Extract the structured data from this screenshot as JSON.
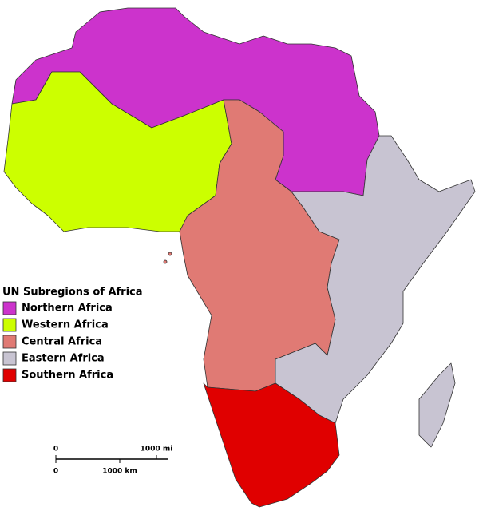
{
  "legend": {
    "title": "UN Subregions of Africa",
    "items": [
      {
        "label": "Northern Africa",
        "color": "#cc33cc"
      },
      {
        "label": "Western Africa",
        "color": "#ccff00"
      },
      {
        "label": "Central Africa",
        "color": "#e07a74"
      },
      {
        "label": "Eastern Africa",
        "color": "#c8c4d2"
      },
      {
        "label": "Southern Africa",
        "color": "#e00000"
      }
    ]
  },
  "scale_bar": {
    "miles": {
      "start": "0",
      "end": "1000 mi"
    },
    "km": {
      "start": "0",
      "end": "1000 km"
    }
  }
}
